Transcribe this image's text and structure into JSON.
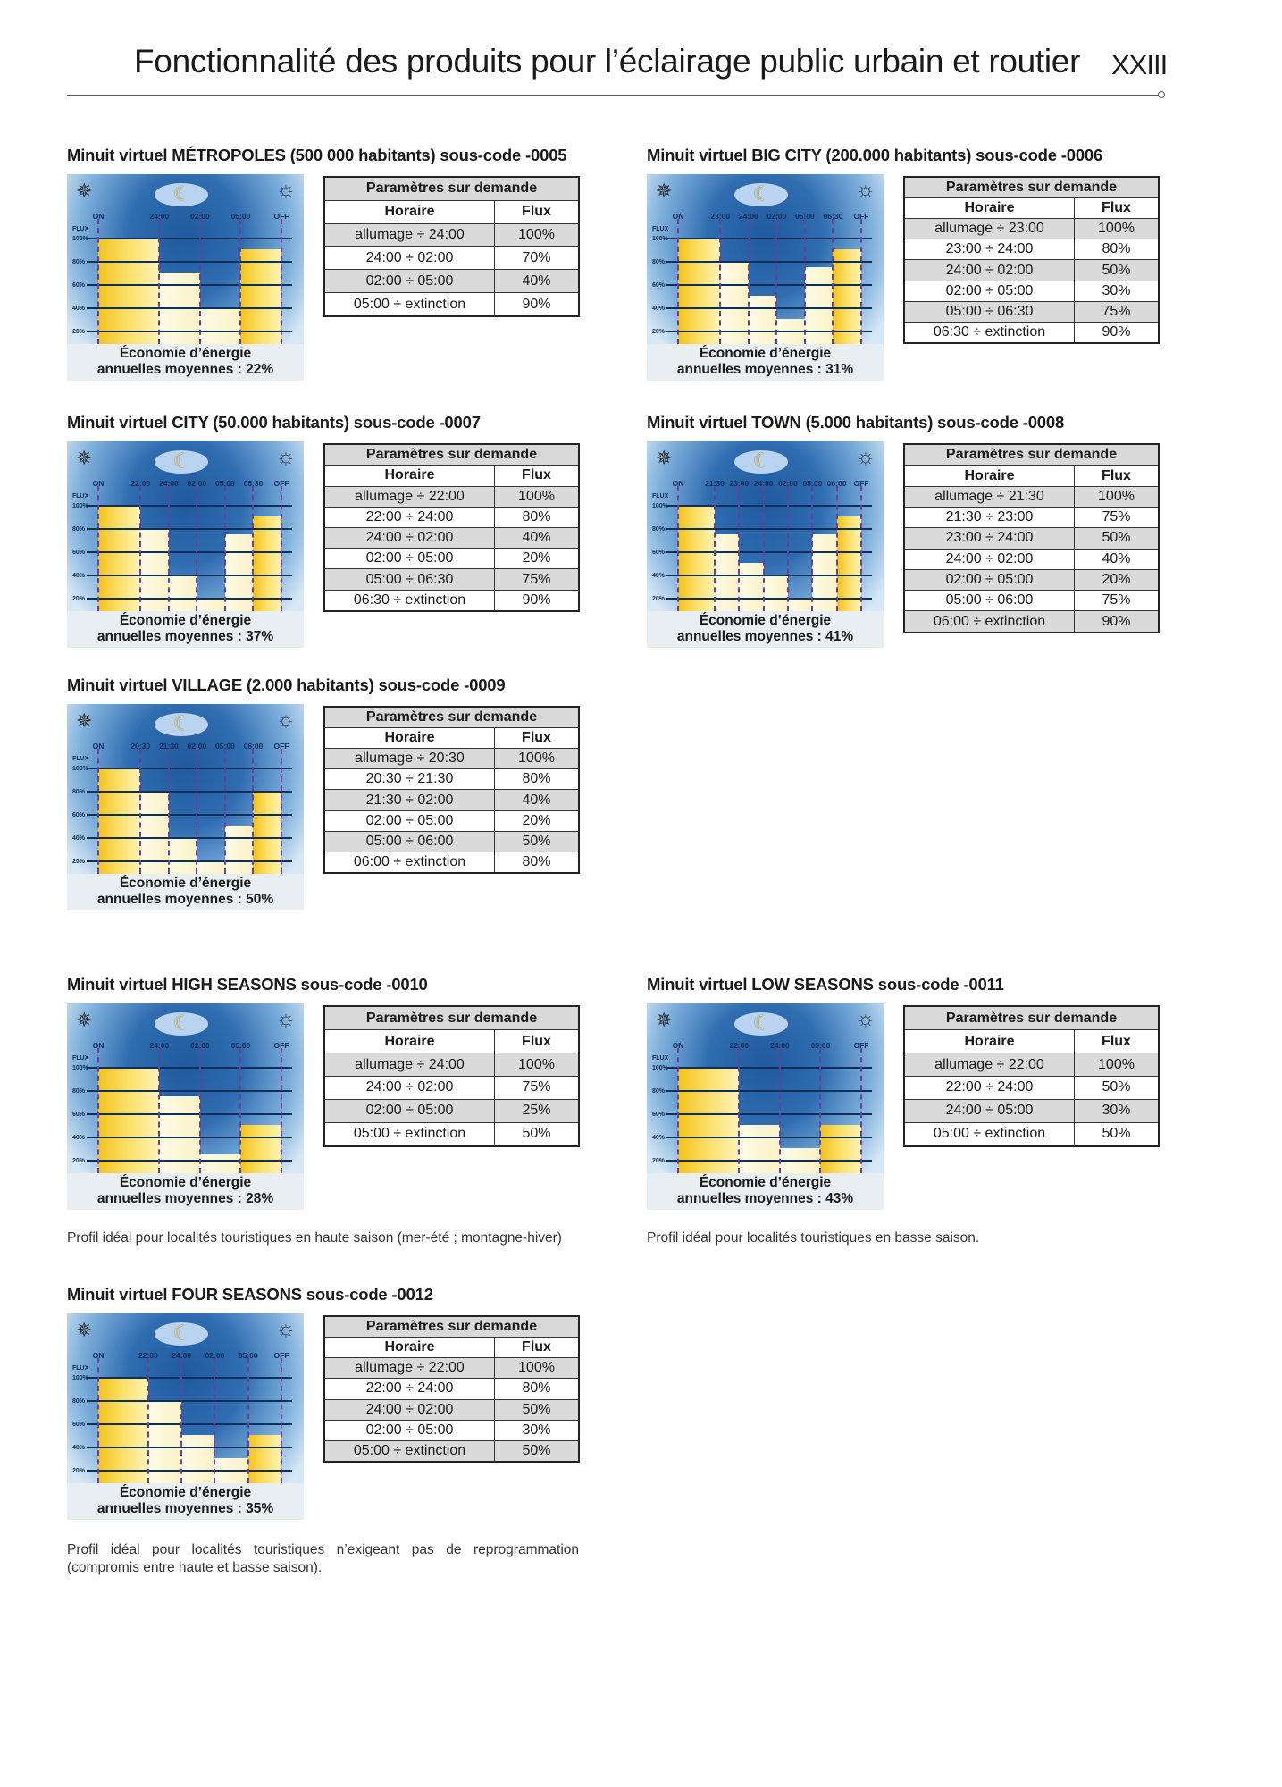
{
  "header": {
    "title": "Fonctionnalité des produits pour l’éclairage public urbain et routier",
    "page": "XXIII"
  },
  "common": {
    "table_title": "Paramètres sur demande",
    "col_time": "Horaire",
    "col_flux": "Flux",
    "caption_line1": "Économie d’énergie",
    "y_labels": [
      "FLUX",
      "100%",
      "80%",
      "60%",
      "40%",
      "20%"
    ]
  },
  "sections": [
    {
      "title": "Minuit virtuel MÉTROPOLES (500 000 habitants) sous-code -0005",
      "rows": [
        [
          "allumage ÷ 24:00",
          "100%"
        ],
        [
          "24:00 ÷ 02:00",
          "70%"
        ],
        [
          "02:00 ÷ 05:00",
          "40%"
        ],
        [
          "05:00 ÷ extinction",
          "90%"
        ]
      ],
      "chart": {
        "type": "step-bar",
        "time_labels": [
          "ON",
          "24:00",
          "02:00",
          "05:00",
          "OFF"
        ],
        "flux": [
          100,
          70,
          40,
          90
        ]
      },
      "caption_line2": "annuelles moyennes : 22%"
    },
    {
      "title": "Minuit virtuel BIG CITY (200.000 habitants) sous-code -0006",
      "rows": [
        [
          "allumage ÷ 23:00",
          "100%"
        ],
        [
          "23:00 ÷ 24:00",
          "80%"
        ],
        [
          "24:00 ÷ 02:00",
          "50%"
        ],
        [
          "02:00 ÷ 05:00",
          "30%"
        ],
        [
          "05:00 ÷ 06:30",
          "75%"
        ],
        [
          "06:30 ÷ extinction",
          "90%"
        ]
      ],
      "chart": {
        "type": "step-bar",
        "time_labels": [
          "ON",
          "23:00",
          "24:00",
          "02:00",
          "05:00",
          "06:30",
          "OFF"
        ],
        "flux": [
          100,
          80,
          50,
          30,
          75,
          90
        ]
      },
      "caption_line2": "annuelles moyennes : 31%"
    },
    {
      "title": "Minuit virtuel CITY (50.000 habitants) sous-code -0007",
      "rows": [
        [
          "allumage ÷ 22:00",
          "100%"
        ],
        [
          "22:00 ÷ 24:00",
          "80%"
        ],
        [
          "24:00 ÷ 02:00",
          "40%"
        ],
        [
          "02:00 ÷ 05:00",
          "20%"
        ],
        [
          "05:00 ÷ 06:30",
          "75%"
        ],
        [
          "06:30 ÷ extinction",
          "90%"
        ]
      ],
      "chart": {
        "type": "step-bar",
        "time_labels": [
          "ON",
          "22:00",
          "24:00",
          "02:00",
          "05:00",
          "06:30",
          "OFF"
        ],
        "flux": [
          100,
          80,
          40,
          20,
          75,
          90
        ]
      },
      "caption_line2": "annuelles moyennes : 37%"
    },
    {
      "title": "Minuit virtuel TOWN (5.000 habitants) sous-code -0008",
      "rows": [
        [
          "allumage ÷ 21:30",
          "100%"
        ],
        [
          "21:30 ÷ 23:00",
          "75%"
        ],
        [
          "23:00 ÷ 24:00",
          "50%"
        ],
        [
          "24:00 ÷ 02:00",
          "40%"
        ],
        [
          "02:00 ÷ 05:00",
          "20%"
        ],
        [
          "05:00 ÷ 06:00",
          "75%"
        ],
        [
          "06:00 ÷ extinction",
          "90%"
        ]
      ],
      "chart": {
        "type": "step-bar",
        "time_labels": [
          "ON",
          "21:30",
          "23:00",
          "24:00",
          "02:00",
          "05:00",
          "06:00",
          "OFF"
        ],
        "flux": [
          100,
          75,
          50,
          40,
          20,
          75,
          90
        ]
      },
      "caption_line2": "annuelles moyennes : 41%"
    },
    {
      "title": "Minuit virtuel VILLAGE (2.000 habitants) sous-code -0009",
      "rows": [
        [
          "allumage ÷ 20:30",
          "100%"
        ],
        [
          "20:30 ÷ 21:30",
          "80%"
        ],
        [
          "21:30 ÷ 02:00",
          "40%"
        ],
        [
          "02:00 ÷ 05:00",
          "20%"
        ],
        [
          "05:00 ÷ 06:00",
          "50%"
        ],
        [
          "06:00 ÷ extinction",
          "80%"
        ]
      ],
      "chart": {
        "type": "step-bar",
        "time_labels": [
          "ON",
          "20:30",
          "21:30",
          "02:00",
          "05:00",
          "06:00",
          "OFF"
        ],
        "flux": [
          100,
          80,
          40,
          20,
          50,
          80
        ]
      },
      "caption_line2": "annuelles moyennes : 50%"
    },
    {
      "title": "Minuit virtuel HIGH SEASONS sous-code -0010",
      "rows": [
        [
          "allumage ÷ 24:00",
          "100%"
        ],
        [
          "24:00 ÷ 02:00",
          "75%"
        ],
        [
          "02:00 ÷ 05:00",
          "25%"
        ],
        [
          "05:00 ÷ extinction",
          "50%"
        ]
      ],
      "chart": {
        "type": "step-bar",
        "time_labels": [
          "ON",
          "24:00",
          "02:00",
          "05:00",
          "OFF"
        ],
        "flux": [
          100,
          75,
          25,
          50
        ]
      },
      "caption_line2": "annuelles moyennes : 28%",
      "note": "Profil idéal pour localités touristiques en haute saison (mer-été ; montagne-hiver)"
    },
    {
      "title": "Minuit virtuel LOW SEASONS sous-code -0011",
      "rows": [
        [
          "allumage ÷ 22:00",
          "100%"
        ],
        [
          "22:00 ÷ 24:00",
          "50%"
        ],
        [
          "24:00 ÷ 05:00",
          "30%"
        ],
        [
          "05:00 ÷ extinction",
          "50%"
        ]
      ],
      "chart": {
        "type": "step-bar",
        "time_labels": [
          "ON",
          "22:00",
          "24:00",
          "05:00",
          "OFF"
        ],
        "flux": [
          100,
          50,
          30,
          50
        ]
      },
      "caption_line2": "annuelles moyennes : 43%",
      "note": "Profil idéal pour localités touristiques en basse saison."
    },
    {
      "title": "Minuit virtuel FOUR SEASONS sous-code -0012",
      "rows": [
        [
          "allumage ÷ 22:00",
          "100%"
        ],
        [
          "22:00 ÷ 24:00",
          "80%"
        ],
        [
          "24:00 ÷ 02:00",
          "50%"
        ],
        [
          "02:00 ÷ 05:00",
          "30%"
        ],
        [
          "05:00 ÷ extinction",
          "50%"
        ]
      ],
      "chart": {
        "type": "step-bar",
        "time_labels": [
          "ON",
          "22:00",
          "24:00",
          "02:00",
          "05:00",
          "OFF"
        ],
        "flux": [
          100,
          80,
          50,
          30,
          50
        ]
      },
      "caption_line2": "annuelles moyennes : 35%",
      "note": "Profil idéal pour localités touristiques n’exigeant pas de reprogrammation (compromis entre haute et basse saison)."
    }
  ]
}
